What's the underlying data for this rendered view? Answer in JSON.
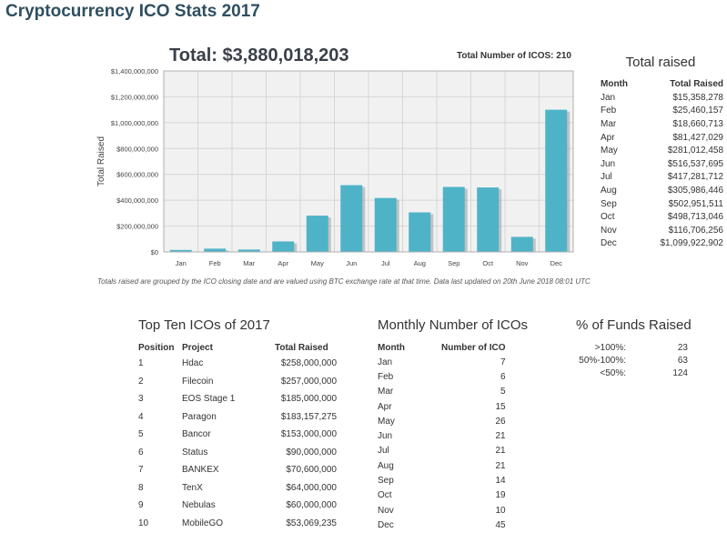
{
  "header": {
    "title": "Cryptocurrency ICO Stats 2017",
    "total": "Total: $3,880,018,203",
    "total_icos": "Total Number of ICOS: 210"
  },
  "chart_data": {
    "type": "bar",
    "categories": [
      "Jan",
      "Feb",
      "Mar",
      "Apr",
      "May",
      "Jun",
      "Jul",
      "Aug",
      "Sep",
      "Oct",
      "Nov",
      "Dec"
    ],
    "values": [
      15358278,
      25460157,
      18660713,
      81427029,
      281012458,
      516537695,
      417281712,
      305986446,
      502951511,
      498713046,
      116706256,
      1099922902
    ],
    "title": "",
    "xlabel": "",
    "ylabel": "Total Raised",
    "ylim": [
      0,
      1400000000
    ],
    "yticks": [
      0,
      200000000,
      400000000,
      600000000,
      800000000,
      1000000000,
      1200000000,
      1400000000
    ],
    "ytick_labels": [
      "$0",
      "$200,000,000",
      "$400,000,000",
      "$600,000,000",
      "$800,000,000",
      "$1,000,000,000",
      "$1,200,000,000",
      "$1,400,000,000"
    ],
    "grid": true,
    "bar_color": "#4fb3c7",
    "note": "Totals raised are grouped by the ICO closing date and are valued using BTC exchange rate at that time. Data last updated on 20th June 2018 08:01 UTC"
  },
  "total_raised": {
    "title": "Total raised",
    "headers": [
      "Month",
      "Total Raised"
    ],
    "rows": [
      [
        "Jan",
        "$15,358,278"
      ],
      [
        "Feb",
        "$25,460,157"
      ],
      [
        "Mar",
        "$18,660,713"
      ],
      [
        "Apr",
        "$81,427,029"
      ],
      [
        "May",
        "$281,012,458"
      ],
      [
        "Jun",
        "$516,537,695"
      ],
      [
        "Jul",
        "$417,281,712"
      ],
      [
        "Aug",
        "$305,986,446"
      ],
      [
        "Sep",
        "$502,951,511"
      ],
      [
        "Oct",
        "$498,713,046"
      ],
      [
        "Nov",
        "$116,706,256"
      ],
      [
        "Dec",
        "$1,099,922,902"
      ]
    ]
  },
  "top_ten": {
    "title": "Top Ten ICOs of 2017",
    "headers": [
      "Position",
      "Project",
      "Total Raised"
    ],
    "rows": [
      [
        "1",
        "Hdac",
        "$258,000,000"
      ],
      [
        "2",
        "Filecoin",
        "$257,000,000"
      ],
      [
        "3",
        "EOS Stage 1",
        "$185,000,000"
      ],
      [
        "4",
        "Paragon",
        "$183,157,275"
      ],
      [
        "5",
        "Bancor",
        "$153,000,000"
      ],
      [
        "6",
        "Status",
        "$90,000,000"
      ],
      [
        "7",
        "BANKEX",
        "$70,600,000"
      ],
      [
        "8",
        "TenX",
        "$64,000,000"
      ],
      [
        "9",
        "Nebulas",
        "$60,000,000"
      ],
      [
        "10",
        "MobileGO",
        "$53,069,235"
      ]
    ]
  },
  "monthly_count": {
    "title": "Monthly Number of ICOs",
    "headers": [
      "Month",
      "Number of ICO"
    ],
    "rows": [
      [
        "Jan",
        "7"
      ],
      [
        "Feb",
        "6"
      ],
      [
        "Mar",
        "5"
      ],
      [
        "Apr",
        "15"
      ],
      [
        "May",
        "26"
      ],
      [
        "Jun",
        "21"
      ],
      [
        "Jul",
        "21"
      ],
      [
        "Aug",
        "21"
      ],
      [
        "Sep",
        "14"
      ],
      [
        "Oct",
        "19"
      ],
      [
        "Nov",
        "10"
      ],
      [
        "Dec",
        "45"
      ]
    ]
  },
  "funds_raised": {
    "title": "% of Funds Raised",
    "rows": [
      [
        ">100%:",
        "23"
      ],
      [
        "50%-100%:",
        "63"
      ],
      [
        "<50%:",
        "124"
      ]
    ]
  }
}
